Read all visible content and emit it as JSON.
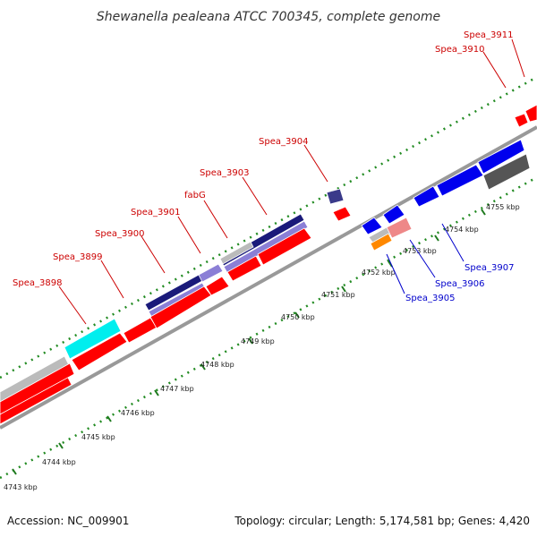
{
  "header": {
    "title": "Shewanella pealeana ATCC 700345, complete genome"
  },
  "footer": {
    "accession": "Accession: NC_009901",
    "summary": "Topology: circular; Length: 5,174,581 bp; Genes: 4,420"
  },
  "colors": {
    "forward_cds": "#ff0000",
    "reverse_cds": "#0000ee",
    "forward_label": "#cc0000",
    "reverse_label": "#0000cc",
    "backbone": "#888888",
    "ticks": "#228b22",
    "navy": "#1a1a7a",
    "lavender": "#7b68cc",
    "gray": "#bbbbbb",
    "dark_gray": "#555555",
    "cyan": "#00eeee",
    "pink": "#ee8888",
    "orange": "#ff8800"
  },
  "scale": {
    "kbp_labels": [
      "4743 kbp",
      "4744 kbp",
      "4745 kbp",
      "4746 kbp",
      "4747 kbp",
      "4748 kbp",
      "4749 kbp",
      "4750 kbp",
      "4751 kbp",
      "4752 kbp",
      "4753 kbp",
      "4754 kbp",
      "4755 kbp"
    ]
  },
  "genes_forward": [
    "Spea_3898",
    "Spea_3899",
    "Spea_3900",
    "Spea_3901",
    "fabG",
    "Spea_3903",
    "Spea_3904",
    "Spea_3910",
    "Spea_3911"
  ],
  "genes_reverse": [
    "Spea_3905",
    "Spea_3906",
    "Spea_3907"
  ]
}
